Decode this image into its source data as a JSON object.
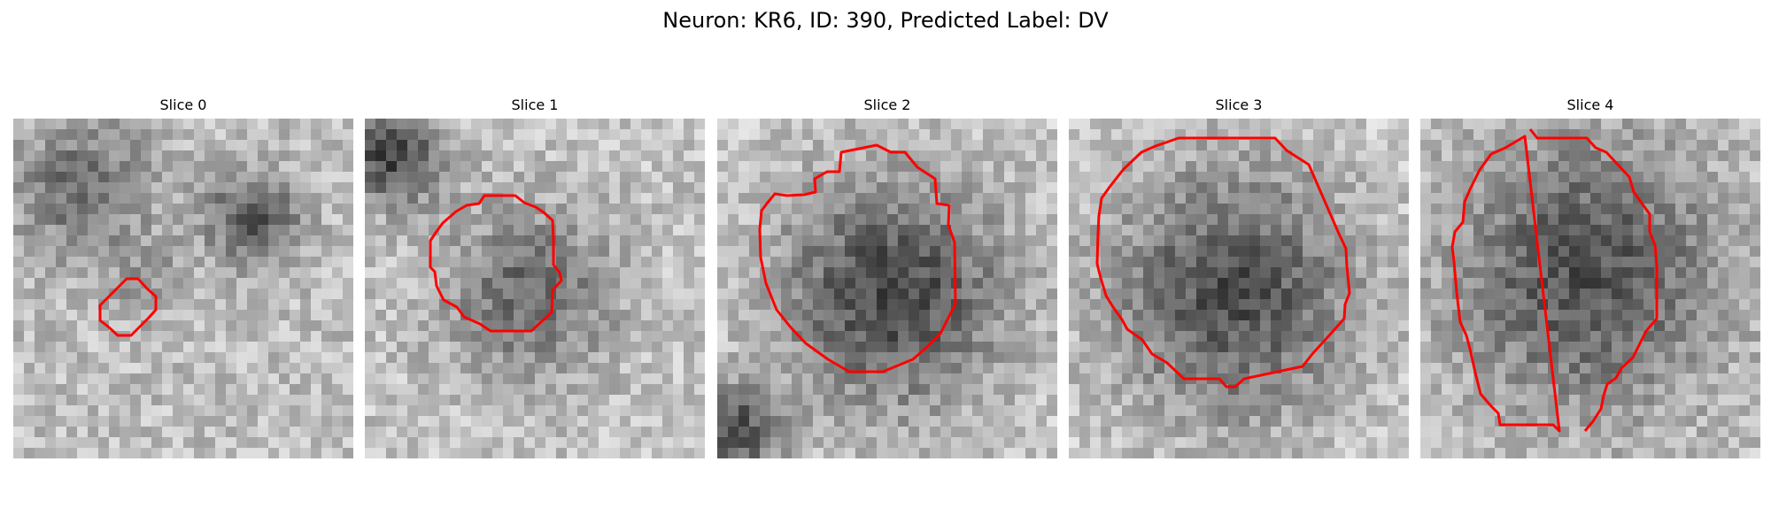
{
  "figure": {
    "title": "Neuron: KR6, ID: 390, Predicted Label: DV"
  },
  "panels": [
    {
      "label": "Slice 0"
    },
    {
      "label": "Slice 1"
    },
    {
      "label": "Slice 2"
    },
    {
      "label": "Slice 3"
    },
    {
      "label": "Slice 4"
    }
  ],
  "colors": {
    "contour": "#ff0000",
    "background": "#ffffff"
  }
}
